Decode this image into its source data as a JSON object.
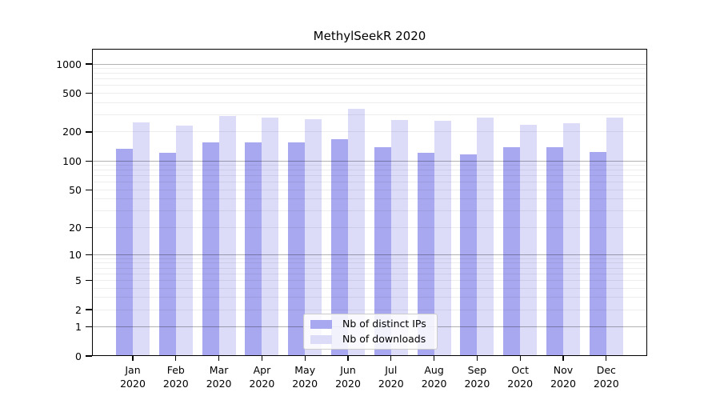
{
  "title": "MethylSeekR 2020",
  "chart_data": {
    "type": "bar",
    "title": "MethylSeekR 2020",
    "categories": [
      "Jan",
      "Feb",
      "Mar",
      "Apr",
      "May",
      "Jun",
      "Jul",
      "Aug",
      "Sep",
      "Oct",
      "Nov",
      "Dec"
    ],
    "year": "2020",
    "series": [
      {
        "name": "Nb of distinct IPs",
        "color": "#a8a8f0",
        "values": [
          133,
          121,
          157,
          156,
          157,
          169,
          139,
          121,
          116,
          138,
          138,
          123
        ]
      },
      {
        "name": "Nb of downloads",
        "color": "#dcdcf8",
        "values": [
          249,
          232,
          289,
          281,
          272,
          345,
          267,
          262,
          283,
          235,
          245,
          279
        ]
      }
    ],
    "xlabel": "",
    "ylabel": "",
    "y_scale": "log10(value+1)",
    "y_ticks": [
      0,
      1,
      2,
      5,
      10,
      20,
      50,
      100,
      200,
      500,
      1000
    ],
    "ylim": [
      0,
      1070
    ],
    "grid": "horizontal, log minor + decade major, drawn over bars",
    "legend_position": "inside lower center"
  },
  "legend": {
    "items": [
      {
        "label": "Nb of distinct IPs"
      },
      {
        "label": "Nb of downloads"
      }
    ]
  }
}
